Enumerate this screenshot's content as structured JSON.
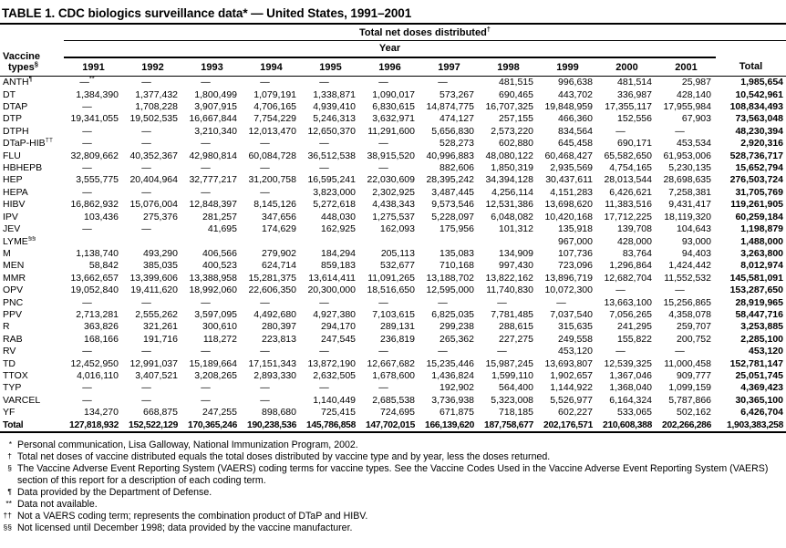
{
  "title": "TABLE 1. CDC biologics surveillance data* — United States, 1991–2001",
  "table": {
    "spanner1": {
      "label": "Total net doses distributed",
      "sup": "†"
    },
    "spanner2": "Year",
    "vaccine_col": {
      "line1": "Vaccine",
      "line2": "types",
      "sup": "§"
    },
    "years": [
      "1991",
      "1992",
      "1993",
      "1994",
      "1995",
      "1996",
      "1997",
      "1998",
      "1999",
      "2000",
      "2001"
    ],
    "total_col": "Total",
    "rows": [
      {
        "label": "ANTH",
        "sup": "¶",
        "values": [
          "—**",
          "—",
          "—",
          "—",
          "—",
          "—",
          "—",
          "481,515",
          "996,638",
          "481,514",
          "25,987"
        ],
        "total": "1,985,654"
      },
      {
        "label": "DT",
        "sup": "",
        "values": [
          "1,384,390",
          "1,377,432",
          "1,800,499",
          "1,079,191",
          "1,338,871",
          "1,090,017",
          "573,267",
          "690,465",
          "443,702",
          "336,987",
          "428,140"
        ],
        "total": "10,542,961"
      },
      {
        "label": "DTAP",
        "sup": "",
        "values": [
          "—",
          "1,708,228",
          "3,907,915",
          "4,706,165",
          "4,939,410",
          "6,830,615",
          "14,874,775",
          "16,707,325",
          "19,848,959",
          "17,355,117",
          "17,955,984"
        ],
        "total": "108,834,493"
      },
      {
        "label": "DTP",
        "sup": "",
        "values": [
          "19,341,055",
          "19,502,535",
          "16,667,844",
          "7,754,229",
          "5,246,313",
          "3,632,971",
          "474,127",
          "257,155",
          "466,360",
          "152,556",
          "67,903"
        ],
        "total": "73,563,048"
      },
      {
        "label": "DTPH",
        "sup": "",
        "values": [
          "—",
          "—",
          "3,210,340",
          "12,013,470",
          "12,650,370",
          "11,291,600",
          "5,656,830",
          "2,573,220",
          "834,564",
          "—",
          "—"
        ],
        "total": "48,230,394"
      },
      {
        "label": "DTaP-HIB",
        "sup": "††",
        "values": [
          "—",
          "—",
          "—",
          "—",
          "—",
          "—",
          "528,273",
          "602,880",
          "645,458",
          "690,171",
          "453,534"
        ],
        "total": "2,920,316"
      },
      {
        "label": "FLU",
        "sup": "",
        "values": [
          "32,809,662",
          "40,352,367",
          "42,980,814",
          "60,084,728",
          "36,512,538",
          "38,915,520",
          "40,996,883",
          "48,080,122",
          "60,468,427",
          "65,582,650",
          "61,953,006"
        ],
        "total": "528,736,717"
      },
      {
        "label": "HBHEPB",
        "sup": "",
        "values": [
          "—",
          "—",
          "—",
          "—",
          "—",
          "—",
          "882,606",
          "1,850,319",
          "2,935,569",
          "4,754,165",
          "5,230,135"
        ],
        "total": "15,652,794"
      },
      {
        "label": "HEP",
        "sup": "",
        "values": [
          "3,555,775",
          "20,404,964",
          "32,777,217",
          "31,200,758",
          "16,595,241",
          "22,030,609",
          "28,395,242",
          "34,394,128",
          "30,437,611",
          "28,013,544",
          "28,698,635"
        ],
        "total": "276,503,724"
      },
      {
        "label": "HEPA",
        "sup": "",
        "values": [
          "—",
          "—",
          "—",
          "—",
          "3,823,000",
          "2,302,925",
          "3,487,445",
          "4,256,114",
          "4,151,283",
          "6,426,621",
          "7,258,381"
        ],
        "total": "31,705,769"
      },
      {
        "label": "HIBV",
        "sup": "",
        "values": [
          "16,862,932",
          "15,076,004",
          "12,848,397",
          "8,145,126",
          "5,272,618",
          "4,438,343",
          "9,573,546",
          "12,531,386",
          "13,698,620",
          "11,383,516",
          "9,431,417"
        ],
        "total": "119,261,905"
      },
      {
        "label": "IPV",
        "sup": "",
        "values": [
          "103,436",
          "275,376",
          "281,257",
          "347,656",
          "448,030",
          "1,275,537",
          "5,228,097",
          "6,048,082",
          "10,420,168",
          "17,712,225",
          "18,119,320"
        ],
        "total": "60,259,184"
      },
      {
        "label": "JEV",
        "sup": "",
        "values": [
          "—",
          "—",
          "41,695",
          "174,629",
          "162,925",
          "162,093",
          "175,956",
          "101,312",
          "135,918",
          "139,708",
          "104,643"
        ],
        "total": "1,198,879"
      },
      {
        "label": "LYME",
        "sup": "§§",
        "values": [
          "",
          "",
          "",
          "",
          "",
          "",
          "",
          "",
          "967,000",
          "428,000",
          "93,000"
        ],
        "total": "1,488,000"
      },
      {
        "label": "M",
        "sup": "",
        "values": [
          "1,138,740",
          "493,290",
          "406,566",
          "279,902",
          "184,294",
          "205,113",
          "135,083",
          "134,909",
          "107,736",
          "83,764",
          "94,403"
        ],
        "total": "3,263,800"
      },
      {
        "label": "MEN",
        "sup": "",
        "values": [
          "58,842",
          "385,035",
          "400,523",
          "624,714",
          "859,183",
          "532,677",
          "710,168",
          "997,430",
          "723,096",
          "1,296,864",
          "1,424,442"
        ],
        "total": "8,012,974"
      },
      {
        "label": "MMR",
        "sup": "",
        "values": [
          "13,662,657",
          "13,399,606",
          "13,388,958",
          "15,281,375",
          "13,614,411",
          "11,091,265",
          "13,188,702",
          "13,822,162",
          "13,896,719",
          "12,682,704",
          "11,552,532"
        ],
        "total": "145,581,091"
      },
      {
        "label": "OPV",
        "sup": "",
        "values": [
          "19,052,840",
          "19,411,620",
          "18,992,060",
          "22,606,350",
          "20,300,000",
          "18,516,650",
          "12,595,000",
          "11,740,830",
          "10,072,300",
          "—",
          "—"
        ],
        "total": "153,287,650"
      },
      {
        "label": "PNC",
        "sup": "",
        "values": [
          "—",
          "—",
          "—",
          "—",
          "—",
          "—",
          "—",
          "—",
          "—",
          "13,663,100",
          "15,256,865"
        ],
        "total": "28,919,965"
      },
      {
        "label": "PPV",
        "sup": "",
        "values": [
          "2,713,281",
          "2,555,262",
          "3,597,095",
          "4,492,680",
          "4,927,380",
          "7,103,615",
          "6,825,035",
          "7,781,485",
          "7,037,540",
          "7,056,265",
          "4,358,078"
        ],
        "total": "58,447,716"
      },
      {
        "label": "R",
        "sup": "",
        "values": [
          "363,826",
          "321,261",
          "300,610",
          "280,397",
          "294,170",
          "289,131",
          "299,238",
          "288,615",
          "315,635",
          "241,295",
          "259,707"
        ],
        "total": "3,253,885"
      },
      {
        "label": "RAB",
        "sup": "",
        "values": [
          "168,166",
          "191,716",
          "118,272",
          "223,813",
          "247,545",
          "236,819",
          "265,362",
          "227,275",
          "249,558",
          "155,822",
          "200,752"
        ],
        "total": "2,285,100"
      },
      {
        "label": "RV",
        "sup": "",
        "values": [
          "—",
          "—",
          "—",
          "—",
          "—",
          "—",
          "—",
          "—",
          "453,120",
          "—",
          "—"
        ],
        "total": "453,120"
      },
      {
        "label": "TD",
        "sup": "",
        "values": [
          "12,452,950",
          "12,991,037",
          "15,189,664",
          "17,151,343",
          "13,872,190",
          "12,667,682",
          "15,235,446",
          "15,987,245",
          "13,693,807",
          "12,539,325",
          "11,000,458"
        ],
        "total": "152,781,147"
      },
      {
        "label": "TTOX",
        "sup": "",
        "values": [
          "4,016,110",
          "3,407,521",
          "3,208,265",
          "2,893,330",
          "2,632,505",
          "1,678,600",
          "1,436,824",
          "1,599,110",
          "1,902,657",
          "1,367,046",
          "909,777"
        ],
        "total": "25,051,745"
      },
      {
        "label": "TYP",
        "sup": "",
        "values": [
          "—",
          "—",
          "—",
          "—",
          "—",
          "—",
          "192,902",
          "564,400",
          "1,144,922",
          "1,368,040",
          "1,099,159"
        ],
        "total": "4,369,423"
      },
      {
        "label": "VARCEL",
        "sup": "",
        "values": [
          "—",
          "—",
          "—",
          "—",
          "1,140,449",
          "2,685,538",
          "3,736,938",
          "5,323,008",
          "5,526,977",
          "6,164,324",
          "5,787,866"
        ],
        "total": "30,365,100"
      },
      {
        "label": "YF",
        "sup": "",
        "values": [
          "134,270",
          "668,875",
          "247,255",
          "898,680",
          "725,415",
          "724,695",
          "671,875",
          "718,185",
          "602,227",
          "533,065",
          "502,162"
        ],
        "total": "6,426,704"
      }
    ],
    "total_row": {
      "label": "Total",
      "values": [
        "127,818,932",
        "152,522,129",
        "170,365,246",
        "190,238,536",
        "145,786,858",
        "147,702,015",
        "166,139,620",
        "187,758,677",
        "202,176,571",
        "210,608,388",
        "202,266,286"
      ],
      "total": "1,903,383,258"
    }
  },
  "footnotes": [
    {
      "marker": "*",
      "text": "Personal communication, Lisa Galloway, National Immunization Program, 2002."
    },
    {
      "marker": "†",
      "text": "Total net doses of vaccine distributed equals the total doses distributed by vaccine type and by year, less the doses returned."
    },
    {
      "marker": "§",
      "text": "The Vaccine Adverse Event Reporting System (VAERS) coding terms for vaccine types. See the Vaccine Codes Used in the Vaccine Adverse Event Reporting System (VAERS) section of this report for a description of each coding term."
    },
    {
      "marker": "¶",
      "text": "Data provided by the Department of Defense."
    },
    {
      "marker": "**",
      "text": "Data not available."
    },
    {
      "marker": "††",
      "text": "Not a VAERS coding term; represents the combination product of DTaP and HIBV."
    },
    {
      "marker": "§§",
      "text": "Not licensed until December 1998; data provided by the vaccine manufacturer."
    }
  ]
}
